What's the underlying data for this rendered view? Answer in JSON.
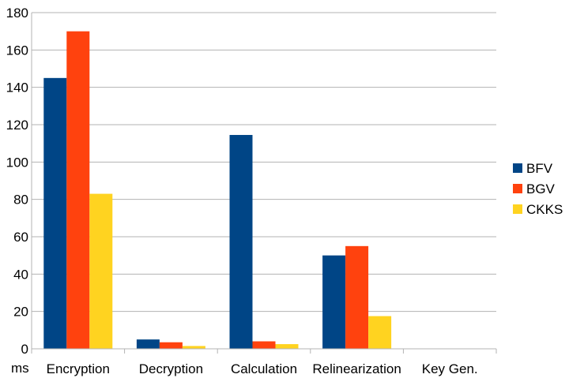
{
  "chart_data": {
    "type": "bar",
    "title": "",
    "xlabel": "",
    "ylabel": "",
    "x_unit_label": "ms",
    "categories": [
      "Encryption",
      "Decryption",
      "Calculation",
      "Relinearization",
      "Key Gen."
    ],
    "series": [
      {
        "name": "BFV",
        "color": "#004586",
        "values": [
          145,
          5,
          114.5,
          50,
          0
        ]
      },
      {
        "name": "BGV",
        "color": "#ff420e",
        "values": [
          170,
          3.5,
          4,
          55,
          0
        ]
      },
      {
        "name": "CKKS",
        "color": "#ffd320",
        "values": [
          83,
          1.5,
          2.5,
          17.5,
          0
        ]
      }
    ],
    "ylim": [
      0,
      180
    ],
    "yticks": [
      0,
      20,
      40,
      60,
      80,
      100,
      120,
      140,
      160,
      180
    ],
    "grid": true,
    "legend_position": "right"
  }
}
